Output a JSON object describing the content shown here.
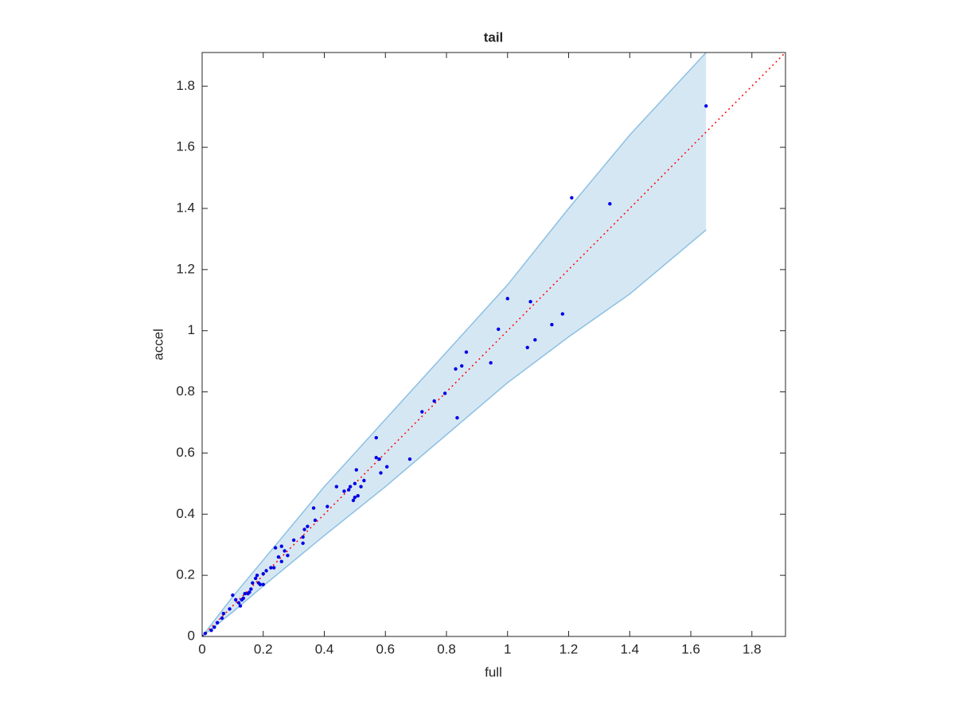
{
  "chart_data": {
    "type": "scatter",
    "title": "tail",
    "xlabel": "full",
    "ylabel": "accel",
    "xlim": [
      0,
      1.91
    ],
    "ylim": [
      0,
      1.91
    ],
    "xticks": [
      0,
      0.2,
      0.4,
      0.6,
      0.8,
      1,
      1.2,
      1.4,
      1.6,
      1.8
    ],
    "yticks": [
      0,
      0.2,
      0.4,
      0.6,
      0.8,
      1,
      1.2,
      1.4,
      1.6,
      1.8
    ],
    "grid": false,
    "color": "#0000e6",
    "x": [
      1.65,
      1.335,
      1.21,
      1.18,
      1.145,
      1.09,
      1.075,
      1.065,
      1.0,
      0.97,
      0.945,
      0.865,
      0.85,
      0.83,
      0.835,
      0.795,
      0.76,
      0.72,
      0.68,
      0.605,
      0.585,
      0.57,
      0.57,
      0.58,
      0.53,
      0.52,
      0.505,
      0.5,
      0.51,
      0.495,
      0.485,
      0.48,
      0.5,
      0.465,
      0.44,
      0.41,
      0.37,
      0.365,
      0.345,
      0.335,
      0.33,
      0.33,
      0.3,
      0.28,
      0.27,
      0.26,
      0.26,
      0.25,
      0.24,
      0.235,
      0.225,
      0.21,
      0.2,
      0.19,
      0.185,
      0.18,
      0.175,
      0.165,
      0.16,
      0.15,
      0.14,
      0.13,
      0.125,
      0.12,
      0.11,
      0.1,
      0.09,
      0.07,
      0.065,
      0.05,
      0.04,
      0.03,
      0.01,
      0.0,
      0.2,
      0.155,
      0.135
    ],
    "values": [
      1.735,
      1.415,
      1.435,
      1.055,
      1.02,
      0.97,
      1.095,
      0.945,
      1.105,
      1.005,
      0.895,
      0.93,
      0.885,
      0.875,
      0.715,
      0.795,
      0.77,
      0.735,
      0.58,
      0.555,
      0.535,
      0.65,
      0.585,
      0.58,
      0.51,
      0.49,
      0.545,
      0.5,
      0.46,
      0.445,
      0.49,
      0.48,
      0.455,
      0.475,
      0.49,
      0.425,
      0.38,
      0.42,
      0.36,
      0.35,
      0.305,
      0.325,
      0.315,
      0.265,
      0.28,
      0.295,
      0.245,
      0.26,
      0.29,
      0.225,
      0.225,
      0.215,
      0.205,
      0.17,
      0.175,
      0.2,
      0.19,
      0.175,
      0.155,
      0.14,
      0.14,
      0.12,
      0.1,
      0.11,
      0.12,
      0.135,
      0.09,
      0.075,
      0.06,
      0.045,
      0.03,
      0.02,
      0.01,
      0.0,
      0.17,
      0.145,
      0.125
    ],
    "band": {
      "x": [
        0,
        0.1,
        0.2,
        0.4,
        0.6,
        0.8,
        1.0,
        1.2,
        1.4,
        1.65
      ],
      "upper": [
        0,
        0.13,
        0.25,
        0.49,
        0.71,
        0.93,
        1.15,
        1.4,
        1.64,
        1.91
      ],
      "lower": [
        0,
        0.08,
        0.165,
        0.33,
        0.49,
        0.66,
        0.83,
        0.98,
        1.12,
        1.33
      ],
      "color": "#d6e7f4",
      "edge_color": "#8cc0e2"
    },
    "reference_line": {
      "x": [
        0,
        1.91
      ],
      "values": [
        0,
        1.91
      ],
      "color": "#ff0000"
    }
  }
}
